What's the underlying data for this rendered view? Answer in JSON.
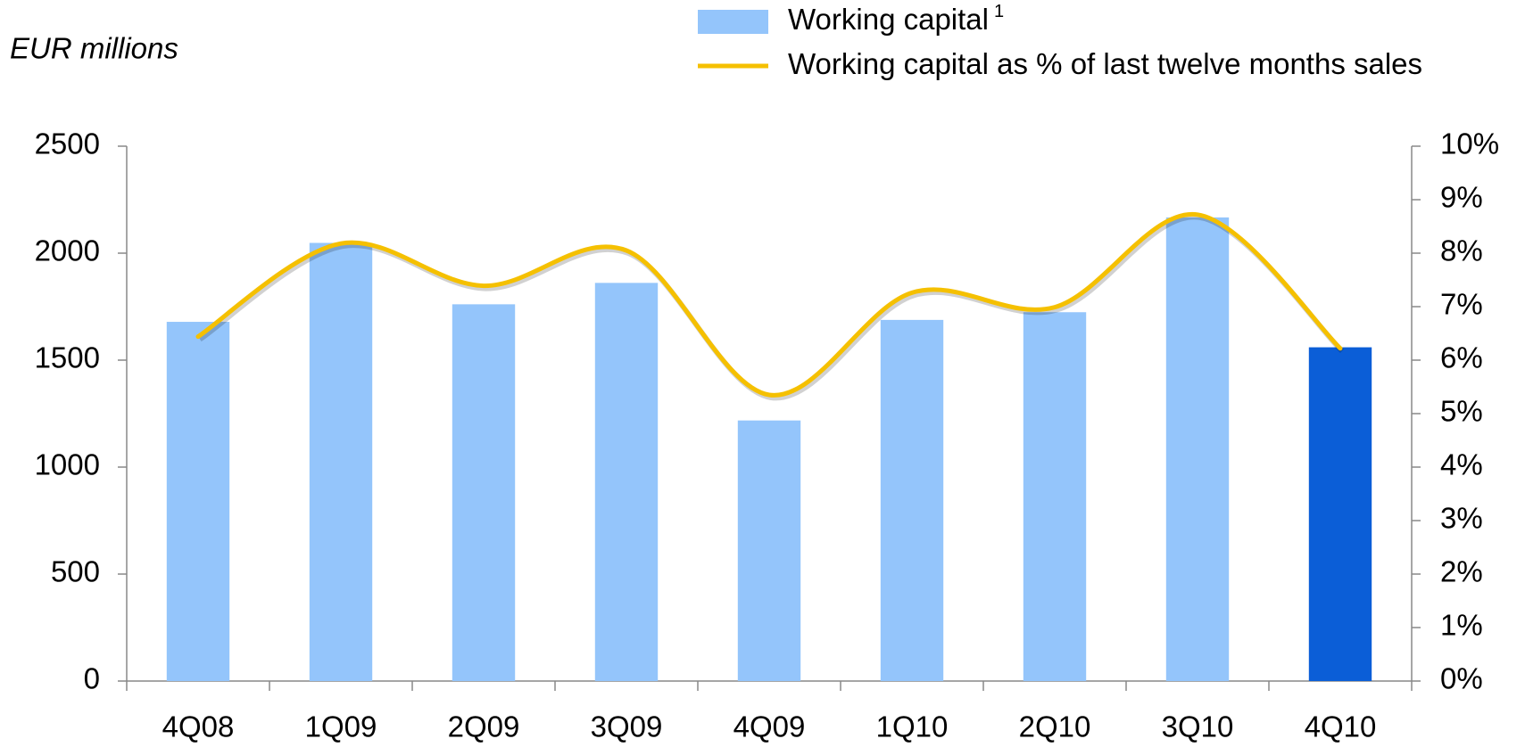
{
  "chart_data": {
    "type": "bar_line",
    "y_label": "EUR millions",
    "categories": [
      "4Q08",
      "1Q09",
      "2Q09",
      "3Q09",
      "4Q09",
      "1Q10",
      "2Q10",
      "3Q10",
      "4Q10"
    ],
    "series": [
      {
        "name": "Working capital",
        "name_superscript": "1",
        "type": "bar",
        "color": "#94c5fb",
        "point_colors": [
          "#94c5fb",
          "#94c5fb",
          "#94c5fb",
          "#94c5fb",
          "#94c5fb",
          "#94c5fb",
          "#94c5fb",
          "#94c5fb",
          "#0b5ed7"
        ],
        "values": [
          1679,
          2048,
          1761,
          1861,
          1218,
          1688,
          1724,
          2167,
          1560
        ]
      },
      {
        "name": "Working capital as % of last twelve months sales",
        "type": "line",
        "axis": "y2",
        "color": "#f5c000",
        "smooth": true,
        "values": [
          6.44,
          8.18,
          7.39,
          8.05,
          5.35,
          7.26,
          6.99,
          8.72,
          6.22
        ]
      }
    ],
    "ylim": [
      0,
      2500
    ],
    "yticks": [
      0,
      500,
      1000,
      1500,
      2000,
      2500
    ],
    "y2lim": [
      0,
      10
    ],
    "y2ticks": [
      {
        "value": 0,
        "label": "0%"
      },
      {
        "value": 1,
        "label": "1%"
      },
      {
        "value": 2,
        "label": "2%"
      },
      {
        "value": 3,
        "label": "3%"
      },
      {
        "value": 4,
        "label": "4%"
      },
      {
        "value": 5,
        "label": "5%"
      },
      {
        "value": 6,
        "label": "6%"
      },
      {
        "value": 7,
        "label": "7%"
      },
      {
        "value": 8,
        "label": "8%"
      },
      {
        "value": 9,
        "label": "9%"
      },
      {
        "value": 10,
        "label": "10%"
      }
    ],
    "grid": false
  }
}
